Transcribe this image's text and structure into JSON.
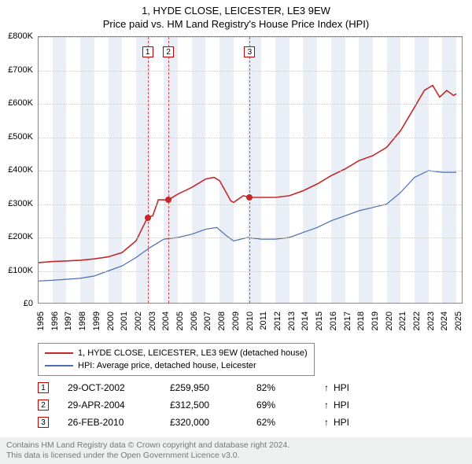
{
  "title": "1, HYDE CLOSE, LEICESTER, LE3 9EW",
  "subtitle": "Price paid vs. HM Land Registry's House Price Index (HPI)",
  "chart": {
    "type": "line",
    "xlim": [
      1995,
      2025.5
    ],
    "ylim": [
      0,
      800000
    ],
    "ytick_step": 100000,
    "yticks": [
      "£0",
      "£100K",
      "£200K",
      "£300K",
      "£400K",
      "£500K",
      "£600K",
      "£700K",
      "£800K"
    ],
    "xticks": [
      1995,
      1996,
      1997,
      1998,
      1999,
      2000,
      2001,
      2002,
      2003,
      2004,
      2005,
      2006,
      2007,
      2008,
      2009,
      2010,
      2011,
      2012,
      2013,
      2014,
      2015,
      2016,
      2017,
      2018,
      2019,
      2020,
      2021,
      2022,
      2023,
      2024,
      2025
    ],
    "grid_color": "#cccccc",
    "background_color": "#ffffff",
    "band_color": "#e9eef7",
    "odd_year_bands": true,
    "series": {
      "property": {
        "color": "#c62828",
        "width": 1.6,
        "points": [
          [
            1995,
            125000
          ],
          [
            1996,
            128000
          ],
          [
            1997,
            130000
          ],
          [
            1998,
            132000
          ],
          [
            1999,
            136000
          ],
          [
            2000,
            142000
          ],
          [
            2001,
            155000
          ],
          [
            2002,
            190000
          ],
          [
            2002.83,
            259950
          ],
          [
            2003.2,
            265000
          ],
          [
            2003.6,
            313000
          ],
          [
            2004.33,
            312500
          ],
          [
            2005,
            330000
          ],
          [
            2006,
            350000
          ],
          [
            2007,
            375000
          ],
          [
            2007.6,
            380000
          ],
          [
            2008,
            370000
          ],
          [
            2008.8,
            310000
          ],
          [
            2009,
            305000
          ],
          [
            2009.7,
            325000
          ],
          [
            2010.16,
            320000
          ],
          [
            2011,
            320000
          ],
          [
            2012,
            320000
          ],
          [
            2013,
            325000
          ],
          [
            2014,
            340000
          ],
          [
            2015,
            360000
          ],
          [
            2016,
            385000
          ],
          [
            2017,
            405000
          ],
          [
            2018,
            430000
          ],
          [
            2019,
            445000
          ],
          [
            2020,
            470000
          ],
          [
            2021,
            520000
          ],
          [
            2022,
            590000
          ],
          [
            2022.7,
            640000
          ],
          [
            2023.3,
            655000
          ],
          [
            2023.8,
            620000
          ],
          [
            2024.3,
            640000
          ],
          [
            2024.8,
            625000
          ],
          [
            2025,
            630000
          ]
        ]
      },
      "hpi": {
        "color": "#4a6fb0",
        "width": 1.2,
        "points": [
          [
            1995,
            70000
          ],
          [
            1996,
            72000
          ],
          [
            1997,
            75000
          ],
          [
            1998,
            78000
          ],
          [
            1999,
            85000
          ],
          [
            2000,
            100000
          ],
          [
            2001,
            115000
          ],
          [
            2002,
            140000
          ],
          [
            2003,
            170000
          ],
          [
            2004,
            195000
          ],
          [
            2005,
            200000
          ],
          [
            2006,
            210000
          ],
          [
            2007,
            225000
          ],
          [
            2007.8,
            230000
          ],
          [
            2008.5,
            205000
          ],
          [
            2009,
            190000
          ],
          [
            2010,
            200000
          ],
          [
            2011,
            195000
          ],
          [
            2012,
            195000
          ],
          [
            2013,
            200000
          ],
          [
            2014,
            215000
          ],
          [
            2015,
            230000
          ],
          [
            2016,
            250000
          ],
          [
            2017,
            265000
          ],
          [
            2018,
            280000
          ],
          [
            2019,
            290000
          ],
          [
            2020,
            300000
          ],
          [
            2021,
            335000
          ],
          [
            2022,
            380000
          ],
          [
            2023,
            400000
          ],
          [
            2024,
            395000
          ],
          [
            2025,
            395000
          ]
        ]
      }
    },
    "sale_markers": [
      {
        "n": "1",
        "year": 2002.83,
        "price": 259950
      },
      {
        "n": "2",
        "year": 2004.33,
        "price": 312500
      },
      {
        "n": "3",
        "year": 2010.16,
        "price": 320000
      }
    ]
  },
  "legend": {
    "property": {
      "color": "#c62828",
      "label": "1, HYDE CLOSE, LEICESTER, LE3 9EW (detached house)"
    },
    "hpi": {
      "color": "#4a6fb0",
      "label": "HPI: Average price, detached house, Leicester"
    }
  },
  "sales": [
    {
      "n": "1",
      "date": "29-OCT-2002",
      "price": "£259,950",
      "ratio": "82%",
      "arrow": "↑",
      "suffix": "HPI"
    },
    {
      "n": "2",
      "date": "29-APR-2004",
      "price": "£312,500",
      "ratio": "69%",
      "arrow": "↑",
      "suffix": "HPI"
    },
    {
      "n": "3",
      "date": "26-FEB-2010",
      "price": "£320,000",
      "ratio": "62%",
      "arrow": "↑",
      "suffix": "HPI"
    }
  ],
  "footer": {
    "line1": "Contains HM Land Registry data © Crown copyright and database right 2024.",
    "line2": "This data is licensed under the Open Government Licence v3.0."
  }
}
